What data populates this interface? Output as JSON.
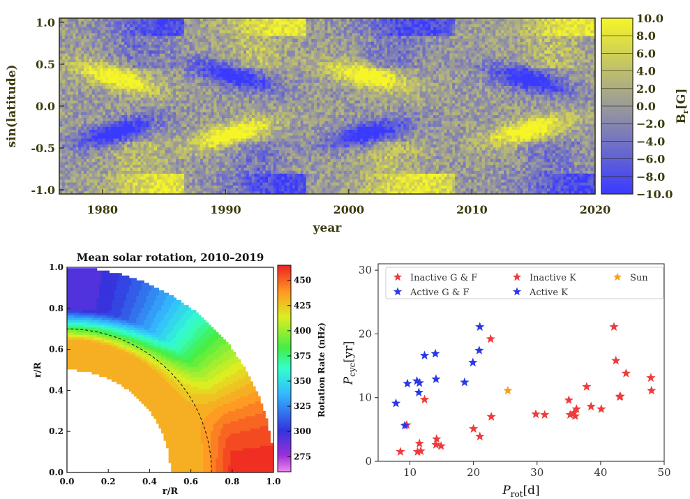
{
  "chart_data": [
    {
      "type": "heatmap",
      "title": "",
      "xlabel": "year",
      "ylabel": "sin(latitude)",
      "xlim": [
        1976.5,
        2020
      ],
      "ylim": [
        -1.05,
        1.05
      ],
      "x_ticks": [
        "1980",
        "1990",
        "2000",
        "2010",
        "2020"
      ],
      "y_ticks": [
        "1.0",
        "0.5",
        "0.0",
        "-0.5",
        "-1.0"
      ],
      "colorbar": {
        "label": "B",
        "label_sub": "r",
        "label_unit": "[G]",
        "ticks": [
          "10.0",
          "8.0",
          "6.0",
          "4.0",
          "2.0",
          "0.0",
          "−2.0",
          "−4.0",
          "−6.0",
          "−8.0",
          "−10.0"
        ],
        "range": [
          -10,
          10
        ],
        "low_color": "#3a3aff",
        "mid_color": "#9a9a9a",
        "high_color": "#f5f528"
      },
      "cycles": [
        {
          "start": 1976.5,
          "end": 1986.5,
          "peak": 1981.0,
          "polarity": 1
        },
        {
          "start": 1986.5,
          "end": 1996.5,
          "peak": 1990.5,
          "polarity": -1
        },
        {
          "start": 1996.5,
          "end": 2008.5,
          "peak": 2001.5,
          "polarity": 1
        },
        {
          "start": 2008.5,
          "end": 2020.0,
          "peak": 2014.5,
          "polarity": -1
        }
      ]
    },
    {
      "type": "heatmap",
      "title": "Mean solar rotation, 2010–2019",
      "xlabel": "r/R",
      "ylabel": "r/R",
      "xlim": [
        0.0,
        1.0
      ],
      "ylim": [
        0.0,
        1.0
      ],
      "x_ticks": [
        "0.0",
        "0.2",
        "0.4",
        "0.6",
        "0.8",
        "1.0"
      ],
      "y_ticks": [
        "0.0",
        "0.2",
        "0.4",
        "0.6",
        "0.8",
        "1.0"
      ],
      "colorbar": {
        "label": "Rotation Rate (nHz)",
        "ticks": [
          "450",
          "425",
          "400",
          "375",
          "350",
          "325",
          "300",
          "275"
        ],
        "range": [
          260,
          465
        ]
      },
      "inner_radius": 0.5,
      "tachocline_radius": 0.7,
      "rate_equator": 462,
      "rate_pole": 300
    },
    {
      "type": "scatter",
      "title": "",
      "xlabel": "P",
      "xlabel_sub": "rot",
      "xlabel_unit": "[d]",
      "ylabel": "P",
      "ylabel_sub": "cyc",
      "ylabel_unit": "[yr]",
      "xlim": [
        5,
        50
      ],
      "ylim": [
        0,
        31
      ],
      "x_ticks": [
        10,
        20,
        30,
        40,
        50
      ],
      "y_ticks": [
        0,
        10,
        20,
        30
      ],
      "legend_position": "top",
      "series": [
        {
          "name": "Inactive G & F",
          "color": "#ef3b3b",
          "points": [
            [
              8.5,
              1.5
            ],
            [
              9.5,
              5.7
            ],
            [
              11.2,
              1.5
            ],
            [
              11.5,
              2.8
            ],
            [
              11.7,
              1.6
            ],
            [
              12.3,
              9.7
            ],
            [
              14.1,
              2.6
            ],
            [
              14.2,
              3.5
            ],
            [
              14.9,
              2.4
            ],
            [
              20.0,
              5.1
            ],
            [
              21.0,
              3.9
            ],
            [
              22.7,
              19.2
            ],
            [
              22.8,
              7.0
            ]
          ]
        },
        {
          "name": "Active G & F",
          "color": "#2a39e6",
          "points": [
            [
              7.8,
              9.1
            ],
            [
              9.2,
              5.6
            ],
            [
              9.6,
              12.2
            ],
            [
              11.1,
              12.6
            ],
            [
              11.4,
              10.8
            ],
            [
              11.5,
              12.3
            ],
            [
              12.3,
              16.6
            ],
            [
              14.0,
              16.9
            ],
            [
              14.1,
              12.9
            ],
            [
              18.6,
              12.4
            ],
            [
              19.9,
              15.5
            ],
            [
              20.9,
              17.4
            ],
            [
              21.0,
              21.1
            ]
          ]
        },
        {
          "name": "Inactive K",
          "color": "#ef3b3b",
          "points": [
            [
              29.8,
              7.4
            ],
            [
              31.2,
              7.3
            ],
            [
              35.0,
              9.6
            ],
            [
              35.2,
              7.3
            ],
            [
              35.8,
              7.6
            ],
            [
              36.0,
              7.1
            ],
            [
              36.2,
              8.2
            ],
            [
              37.8,
              11.7
            ],
            [
              38.5,
              8.6
            ],
            [
              40.1,
              8.2
            ],
            [
              42.1,
              21.1
            ],
            [
              42.4,
              15.8
            ],
            [
              43.0,
              10.1
            ],
            [
              43.1,
              10.2
            ],
            [
              44.0,
              13.8
            ],
            [
              47.9,
              13.1
            ],
            [
              48.0,
              11.1
            ]
          ]
        },
        {
          "name": "Active K",
          "color": "#2a39e6",
          "points": []
        },
        {
          "name": "Sun",
          "color": "#f5a020",
          "points": [
            [
              25.4,
              11.1
            ]
          ]
        }
      ]
    }
  ]
}
